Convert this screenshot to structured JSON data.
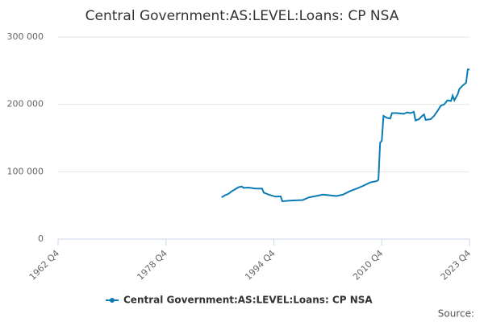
{
  "chart_data": {
    "type": "line",
    "title": "Central Government:AS:LEVEL:Loans: CP NSA",
    "source": "Source:",
    "x": [
      "1987 Q1",
      "1987 Q3",
      "1988 Q1",
      "1988 Q3",
      "1989 Q1",
      "1989 Q3",
      "1990 Q1",
      "1990 Q2",
      "1991 Q1",
      "1992 Q1",
      "1993 Q1",
      "1993 Q2",
      "1994 Q1",
      "1995 Q1",
      "1995 Q4",
      "1996 Q1",
      "1997 Q1",
      "1998 Q1",
      "1999 Q1",
      "2000 Q1",
      "2001 Q1",
      "2002 Q1",
      "2003 Q1",
      "2004 Q1",
      "2005 Q1",
      "2006 Q1",
      "2007 Q1",
      "2008 Q1",
      "2009 Q1",
      "2010 Q1",
      "2010 Q2",
      "2010 Q3",
      "2010 Q4",
      "2011 Q1",
      "2011 Q3",
      "2012 Q1",
      "2012 Q2",
      "2013 Q1",
      "2014 Q1",
      "2014 Q3",
      "2015 Q1",
      "2015 Q3",
      "2015 Q4",
      "2016 Q2",
      "2016 Q4",
      "2017 Q1",
      "2017 Q2",
      "2018 Q1",
      "2018 Q3",
      "2019 Q1",
      "2019 Q3",
      "2020 Q1",
      "2020 Q3",
      "2021 Q1",
      "2021 Q2",
      "2021 Q3",
      "2022 Q1",
      "2022 Q2",
      "2022 Q4",
      "2023 Q2",
      "2023 Q3",
      "2023 Q4"
    ],
    "series": [
      {
        "name": "Central Government:AS:LEVEL:Loans: CP NSA",
        "color": "#0b7bb5",
        "values": [
          62000,
          65000,
          67000,
          71000,
          74000,
          77000,
          78000,
          76000,
          76500,
          75000,
          75000,
          69000,
          66000,
          63000,
          63500,
          56000,
          57000,
          57500,
          58000,
          62000,
          64000,
          66000,
          65000,
          64000,
          66000,
          71000,
          75000,
          79000,
          84000,
          86000,
          88000,
          143000,
          146000,
          183000,
          180000,
          179000,
          187000,
          187000,
          186000,
          188000,
          187000,
          189000,
          176000,
          178000,
          183000,
          185000,
          177000,
          178000,
          183000,
          190000,
          198000,
          200000,
          206000,
          205000,
          213000,
          206000,
          215000,
          223000,
          228000,
          232000,
          252000,
          252000
        ]
      }
    ],
    "xlim": [
      "1962 Q4",
      "2023 Q4"
    ],
    "xticks": [
      "1962 Q4",
      "1978 Q4",
      "1994 Q4",
      "2010 Q4",
      "2023 Q4"
    ],
    "ylim": [
      0,
      300000
    ],
    "yticks": [
      0,
      {
        "value": 100000,
        "label": "100 000"
      },
      {
        "value": 200000,
        "label": "200 000"
      },
      {
        "value": 300000,
        "label": "300 000"
      }
    ],
    "grid": true
  }
}
